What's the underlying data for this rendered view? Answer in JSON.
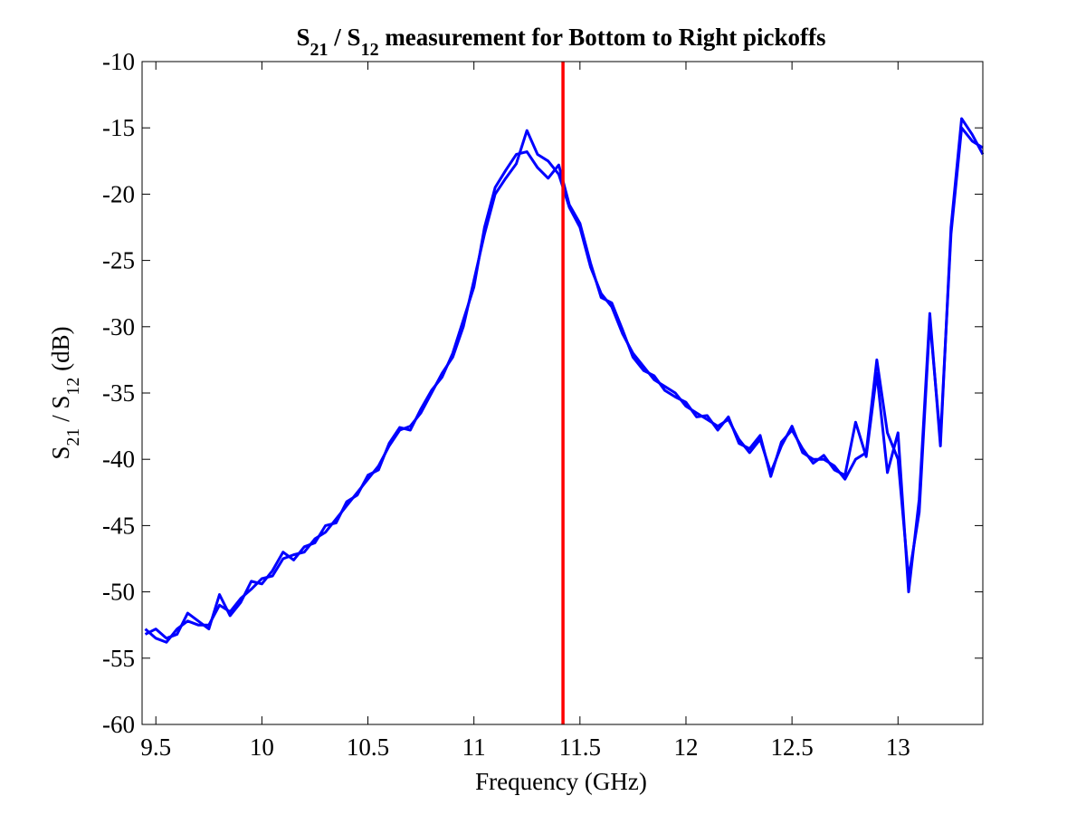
{
  "chart_data": {
    "type": "line",
    "title": "S21 / S12 measurement for Bottom to Right pickoffs",
    "xlabel": "Frequency (GHz)",
    "ylabel": "S21 / S12 (dB)",
    "x": [
      9.45,
      9.5,
      9.55,
      9.6,
      9.65,
      9.7,
      9.75,
      9.8,
      9.85,
      9.9,
      9.95,
      10,
      10.05,
      10.1,
      10.15,
      10.2,
      10.25,
      10.3,
      10.35,
      10.4,
      10.45,
      10.5,
      10.55,
      10.6,
      10.65,
      10.7,
      10.75,
      10.8,
      10.85,
      10.9,
      10.95,
      11,
      11.05,
      11.1,
      11.15,
      11.2,
      11.25,
      11.3,
      11.35,
      11.4,
      11.45,
      11.5,
      11.55,
      11.6,
      11.65,
      11.7,
      11.75,
      11.8,
      11.85,
      11.9,
      11.95,
      12,
      12.05,
      12.1,
      12.15,
      12.2,
      12.25,
      12.3,
      12.35,
      12.4,
      12.45,
      12.5,
      12.55,
      12.6,
      12.65,
      12.7,
      12.75,
      12.8,
      12.85,
      12.9,
      12.95,
      13,
      13.05,
      13.1,
      13.15,
      13.2,
      13.25,
      13.3,
      13.35,
      13.4
    ],
    "series": [
      {
        "color": "#0000ff",
        "values": [
          -52.8,
          -53.5,
          -53.8,
          -52.8,
          -52.2,
          -52.5,
          -52.5,
          -51,
          -51.5,
          -50.5,
          -49.8,
          -49,
          -48.8,
          -47.5,
          -47.2,
          -47,
          -46,
          -45.5,
          -44.5,
          -43.5,
          -42.5,
          -41.5,
          -40.5,
          -39,
          -37.8,
          -37.5,
          -36.5,
          -35,
          -33.5,
          -32.3,
          -30,
          -26.5,
          -23,
          -20,
          -18.8,
          -17.7,
          -15.2,
          -17,
          -17.5,
          -18.5,
          -21,
          -22.5,
          -25.5,
          -27.5,
          -28.5,
          -30.5,
          -32,
          -33,
          -34,
          -34.5,
          -35,
          -36,
          -36.5,
          -37,
          -37.5,
          -37,
          -38.5,
          -39.5,
          -38.5,
          -41,
          -39,
          -37.5,
          -39.5,
          -40,
          -40,
          -40.5,
          -41.5,
          -40,
          -39.5,
          -32.5,
          -38,
          -40,
          -49,
          -44,
          -29.5,
          -38.5,
          -23,
          -15,
          -16,
          -16.5
        ]
      },
      {
        "color": "#0000ff",
        "values": [
          -53.2,
          -52.8,
          -53.5,
          -53.2,
          -51.6,
          -52.2,
          -52.8,
          -50.2,
          -51.8,
          -50.8,
          -49.2,
          -49.4,
          -48.4,
          -47,
          -47.6,
          -46.6,
          -46.3,
          -45,
          -44.8,
          -43.2,
          -42.7,
          -41.2,
          -40.8,
          -38.8,
          -37.6,
          -37.8,
          -36.2,
          -34.8,
          -33.8,
          -32,
          -29.5,
          -27,
          -22.5,
          -19.5,
          -18.2,
          -17,
          -16.8,
          -18,
          -18.8,
          -17.8,
          -20.8,
          -22.2,
          -25.2,
          -27.8,
          -28.2,
          -30.2,
          -32.3,
          -33.3,
          -33.7,
          -34.8,
          -35.3,
          -35.7,
          -36.8,
          -36.7,
          -37.8,
          -36.8,
          -38.8,
          -39.2,
          -38.2,
          -41.3,
          -38.7,
          -37.8,
          -39.2,
          -40.3,
          -39.7,
          -40.8,
          -41.2,
          -37.2,
          -39.8,
          -33.5,
          -41,
          -38,
          -50,
          -43,
          -29,
          -39,
          -22.5,
          -14.3,
          -15.5,
          -17
        ]
      }
    ],
    "vline": {
      "x": 11.42,
      "color": "#ff0000"
    },
    "xlim": [
      9.435,
      13.4
    ],
    "ylim": [
      -60,
      -10
    ],
    "xticks": [
      9.5,
      10,
      10.5,
      11,
      11.5,
      12,
      12.5,
      13
    ],
    "yticks": [
      -60,
      -55,
      -50,
      -45,
      -40,
      -35,
      -30,
      -25,
      -20,
      -15,
      -10
    ],
    "grid": false
  }
}
